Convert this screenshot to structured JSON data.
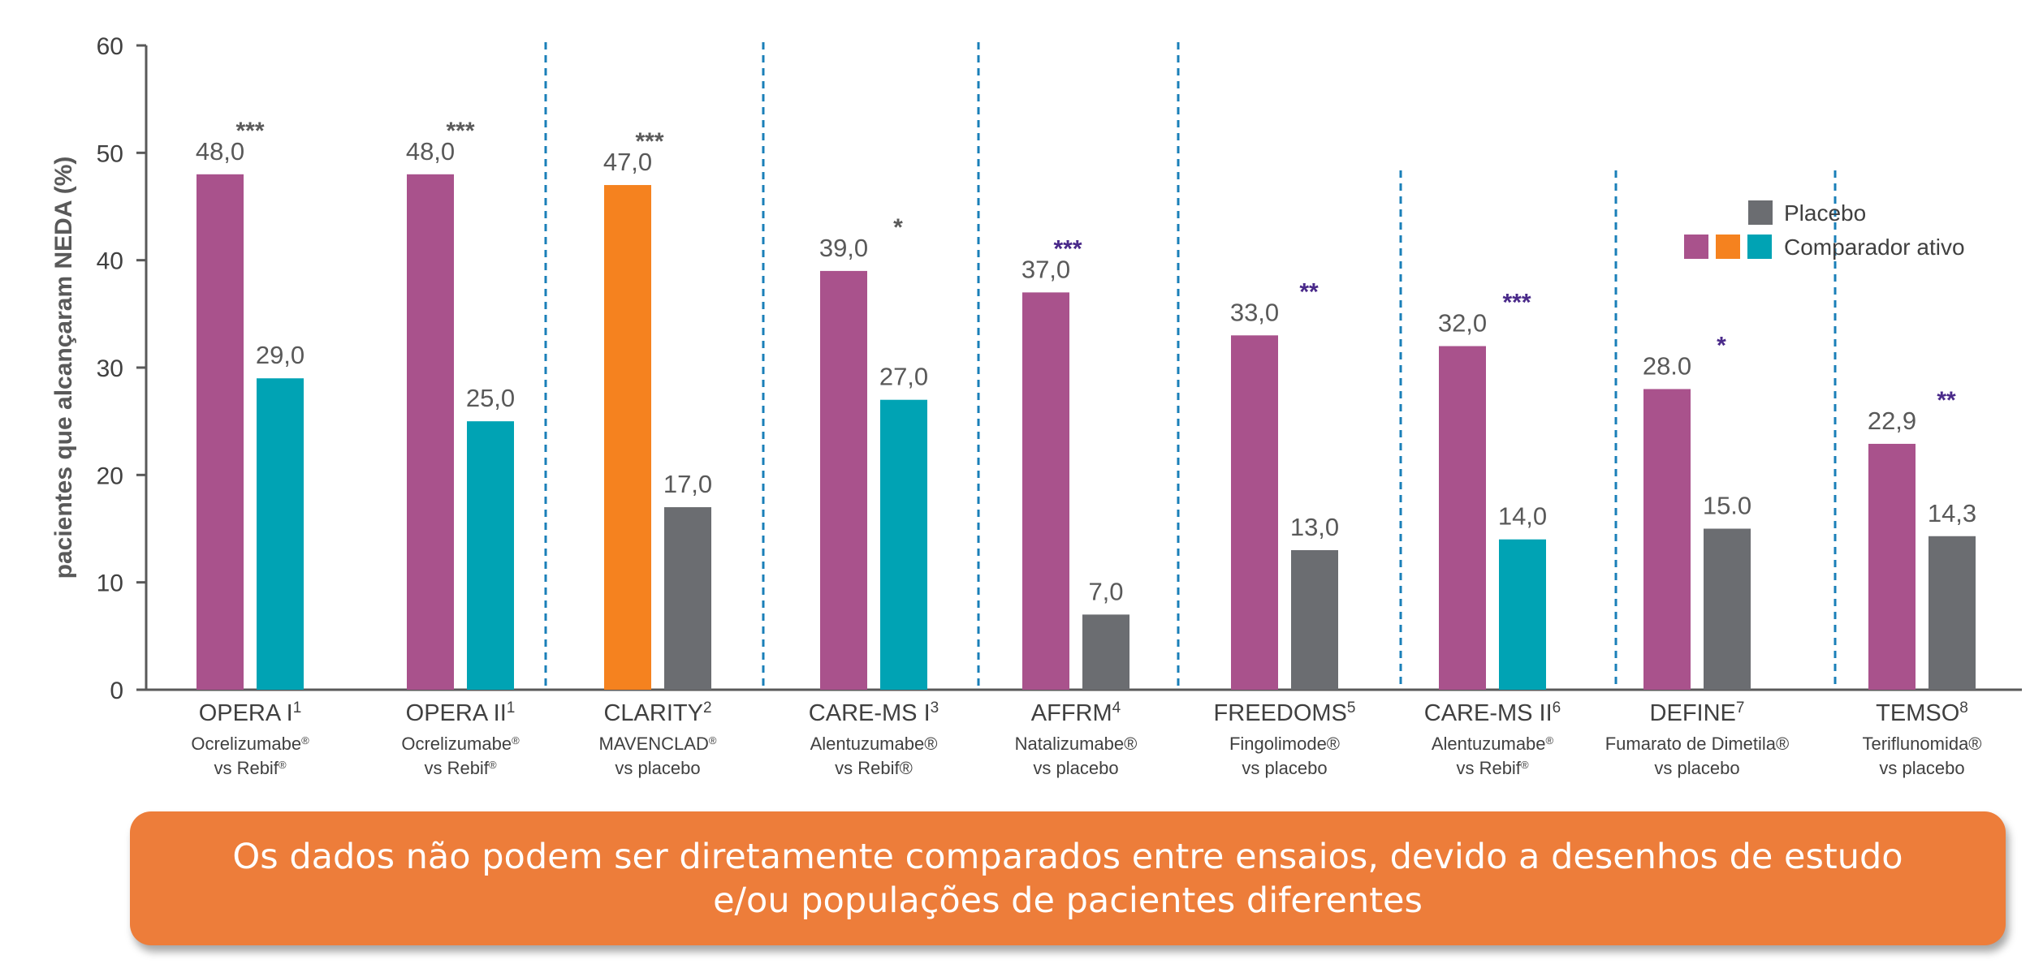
{
  "chart_data": {
    "type": "bar",
    "ylabel": "pacientes que alcançaram NEDA (%)",
    "ylim": [
      0,
      60
    ],
    "yticks": [
      "0",
      "10",
      "20",
      "30",
      "40",
      "50",
      "60"
    ],
    "legend": {
      "position": "top-right",
      "entries": [
        {
          "name": "Placebo",
          "colors": [
            "#6b6d71"
          ]
        },
        {
          "name": "Comparador ativo",
          "colors": [
            "#a9528c",
            "#f5821f",
            "#00a3b4"
          ]
        }
      ]
    },
    "colors": {
      "magenta": "#a9528c",
      "orange": "#f5821f",
      "teal": "#00a3b4",
      "gray": "#6b6d71",
      "stars_gray": "#5a5a5a",
      "stars_purple": "#4a2a8a",
      "divider": "#1a7fb8"
    },
    "groups": [
      {
        "name": "OPERA I",
        "sup": "1",
        "line1": "Ocrelizumabe",
        "line1_mark": "®",
        "line2": "vs Rebif",
        "line2_mark": "®",
        "bars": [
          {
            "value": 48.0,
            "label": "48,0",
            "color": "magenta"
          },
          {
            "value": 29.0,
            "label": "29,0",
            "color": "teal"
          }
        ],
        "stars": "***",
        "stars_color": "stars_gray"
      },
      {
        "name": "OPERA II",
        "sup": "1",
        "line1": "Ocrelizumabe",
        "line1_mark": "®",
        "line2": "vs Rebif",
        "line2_mark": "®",
        "bars": [
          {
            "value": 48.0,
            "label": "48,0",
            "color": "magenta"
          },
          {
            "value": 25.0,
            "label": "25,0",
            "color": "teal"
          }
        ],
        "stars": "***",
        "stars_color": "stars_gray"
      },
      {
        "name": "CLARITY",
        "sup": "2",
        "line1": "MAVENCLAD",
        "line1_mark": "®",
        "line2": "vs placebo",
        "line2_mark": "",
        "bars": [
          {
            "value": 47.0,
            "label": "47,0",
            "color": "orange"
          },
          {
            "value": 17.0,
            "label": "17,0",
            "color": "gray"
          }
        ],
        "stars": "***",
        "stars_color": "stars_gray"
      },
      {
        "name": "CARE-MS I",
        "sup": "3",
        "line1": "Alentuzumabe®",
        "line1_mark": "",
        "line2": "vs Rebif®",
        "line2_mark": "",
        "bars": [
          {
            "value": 39.0,
            "label": "39,0",
            "color": "magenta"
          },
          {
            "value": 27.0,
            "label": "27,0",
            "color": "teal"
          }
        ],
        "stars": "*",
        "stars_color": "stars_gray"
      },
      {
        "name": "AFFRM",
        "sup": "4",
        "line1": "Natalizumabe®",
        "line1_mark": "",
        "line2": "vs placebo",
        "line2_mark": "",
        "bars": [
          {
            "value": 37.0,
            "label": "37,0",
            "color": "magenta"
          },
          {
            "value": 7.0,
            "label": "7,0",
            "color": "gray"
          }
        ],
        "stars": "***",
        "stars_color": "stars_purple"
      },
      {
        "name": "FREEDOMS",
        "sup": "5",
        "line1": "Fingolimode®",
        "line1_mark": "",
        "line2": "vs placebo",
        "line2_mark": "",
        "bars": [
          {
            "value": 33.0,
            "label": "33,0",
            "color": "magenta"
          },
          {
            "value": 13.0,
            "label": "13,0",
            "color": "gray"
          }
        ],
        "stars": "**",
        "stars_color": "stars_purple"
      },
      {
        "name": "CARE-MS II",
        "sup": "6",
        "line1": "Alentuzumabe",
        "line1_mark": "®",
        "line2": "vs Rebif",
        "line2_mark": "®",
        "bars": [
          {
            "value": 32.0,
            "label": "32,0",
            "color": "magenta"
          },
          {
            "value": 14.0,
            "label": "14,0",
            "color": "teal"
          }
        ],
        "stars": "***",
        "stars_color": "stars_purple"
      },
      {
        "name": "DEFINE",
        "sup": "7",
        "line1": "Fumarato de Dimetila®",
        "line1_mark": "",
        "line2": "vs placebo",
        "line2_mark": "",
        "bars": [
          {
            "value": 28.0,
            "label": "28.0",
            "color": "magenta"
          },
          {
            "value": 15.0,
            "label": "15.0",
            "color": "gray"
          }
        ],
        "stars": "*",
        "stars_color": "stars_purple"
      },
      {
        "name": "TEMSO",
        "sup": "8",
        "line1": "Teriflunomida®",
        "line1_mark": "",
        "line2": "vs placebo",
        "line2_mark": "",
        "bars": [
          {
            "value": 22.9,
            "label": "22,9",
            "color": "magenta"
          },
          {
            "value": 14.3,
            "label": "14,3",
            "color": "gray"
          }
        ],
        "stars": "**",
        "stars_color": "stars_purple"
      }
    ]
  },
  "banner": {
    "text": "Os dados não podem ser diretamente comparados entre ensaios, devido a desenhos de estudo e/ou populações de pacientes diferentes"
  }
}
